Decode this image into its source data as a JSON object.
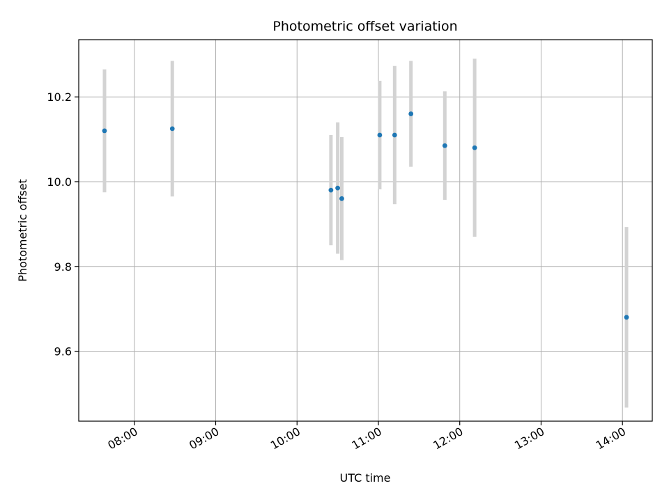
{
  "chart_data": {
    "type": "scatter",
    "title": "Photometric offset variation",
    "xlabel": "UTC time",
    "ylabel": "Photometric offset",
    "x_ticks": [
      "08:00",
      "09:00",
      "10:00",
      "11:00",
      "12:00",
      "13:00",
      "14:00"
    ],
    "y_ticks": [
      "9.6",
      "9.8",
      "10.0",
      "10.2"
    ],
    "xlim": [
      "07:19",
      "14:22"
    ],
    "ylim": [
      9.435,
      10.335
    ],
    "grid": true,
    "legend": "none",
    "colors": {
      "point": "#1f77b4",
      "errorbar": "#d3d3d3",
      "grid": "#b0b0b0"
    },
    "points": [
      {
        "time": "07:38",
        "y": 10.12,
        "yerr": 0.145
      },
      {
        "time": "08:28",
        "y": 10.125,
        "yerr": 0.16
      },
      {
        "time": "10:25",
        "y": 9.98,
        "yerr": 0.13
      },
      {
        "time": "10:30",
        "y": 9.985,
        "yerr": 0.155
      },
      {
        "time": "10:33",
        "y": 9.96,
        "yerr": 0.145
      },
      {
        "time": "11:01",
        "y": 10.11,
        "yerr": 0.128
      },
      {
        "time": "11:12",
        "y": 10.11,
        "yerr": 0.163
      },
      {
        "time": "11:24",
        "y": 10.16,
        "yerr": 0.125
      },
      {
        "time": "11:49",
        "y": 10.085,
        "yerr": 0.128
      },
      {
        "time": "12:11",
        "y": 10.08,
        "yerr": 0.21
      },
      {
        "time": "14:03",
        "y": 9.68,
        "yerr": 0.213
      }
    ]
  }
}
